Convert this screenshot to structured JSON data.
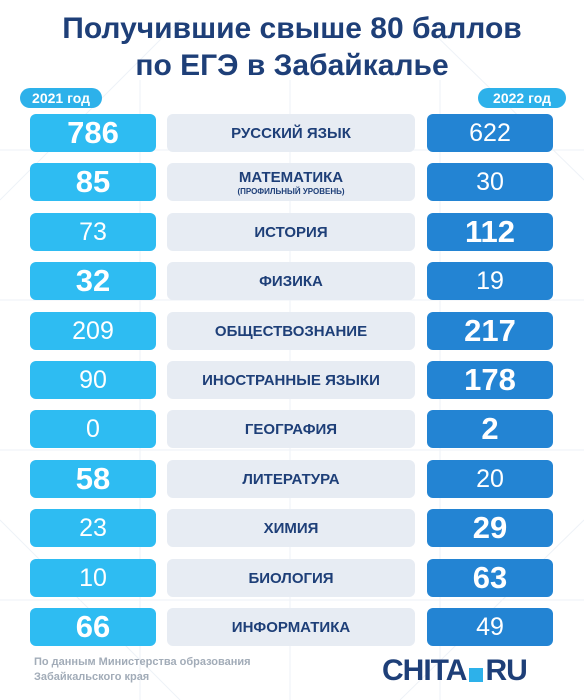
{
  "title_line1": "Получившие свыше 80 баллов",
  "title_line2": "по ЕГЭ в Забайкалье",
  "year_left": "2021 год",
  "year_right": "2022 год",
  "source_line1": "По данным Министерства образования",
  "source_line2": "Забайкальского края",
  "logo": {
    "chita": "CHITA",
    "ru": "RU"
  },
  "colors": {
    "title": "#1e3f78",
    "year_tag": "#2db1ea",
    "box_2021": "#2ebcf2",
    "box_2022": "#2384d3",
    "subject_bg": "#e7ecf3"
  },
  "chart_data": {
    "type": "table",
    "title": "Получившие свыше 80 баллов по ЕГЭ в Забайкалье",
    "columns": [
      "2021 год",
      "2022 год"
    ],
    "rows": [
      {
        "subject": "РУССКИЙ ЯЗЫК",
        "note": "",
        "v2021": "786",
        "v2022": "622"
      },
      {
        "subject": "МАТЕМАТИКА",
        "note": "(ПРОФИЛЬНЫЙ УРОВЕНЬ)",
        "v2021": "85",
        "v2022": "30"
      },
      {
        "subject": "ИСТОРИЯ",
        "note": "",
        "v2021": "73",
        "v2022": "112"
      },
      {
        "subject": "ФИЗИКА",
        "note": "",
        "v2021": "32",
        "v2022": "19"
      },
      {
        "subject": "ОБЩЕСТВОЗНАНИЕ",
        "note": "",
        "v2021": "209",
        "v2022": "217"
      },
      {
        "subject": "ИНОСТРАННЫЕ ЯЗЫКИ",
        "note": "",
        "v2021": "90",
        "v2022": "178"
      },
      {
        "subject": "ГЕОГРАФИЯ",
        "note": "",
        "v2021": "0",
        "v2022": "2"
      },
      {
        "subject": "ЛИТЕРАТУРА",
        "note": "",
        "v2021": "58",
        "v2022": "20"
      },
      {
        "subject": "ХИМИЯ",
        "note": "",
        "v2021": "23",
        "v2022": "29"
      },
      {
        "subject": "БИОЛОГИЯ",
        "note": "",
        "v2021": "10",
        "v2022": "63"
      },
      {
        "subject": "ИНФОРМАТИКА",
        "note": "",
        "v2021": "66",
        "v2022": "49"
      }
    ]
  }
}
